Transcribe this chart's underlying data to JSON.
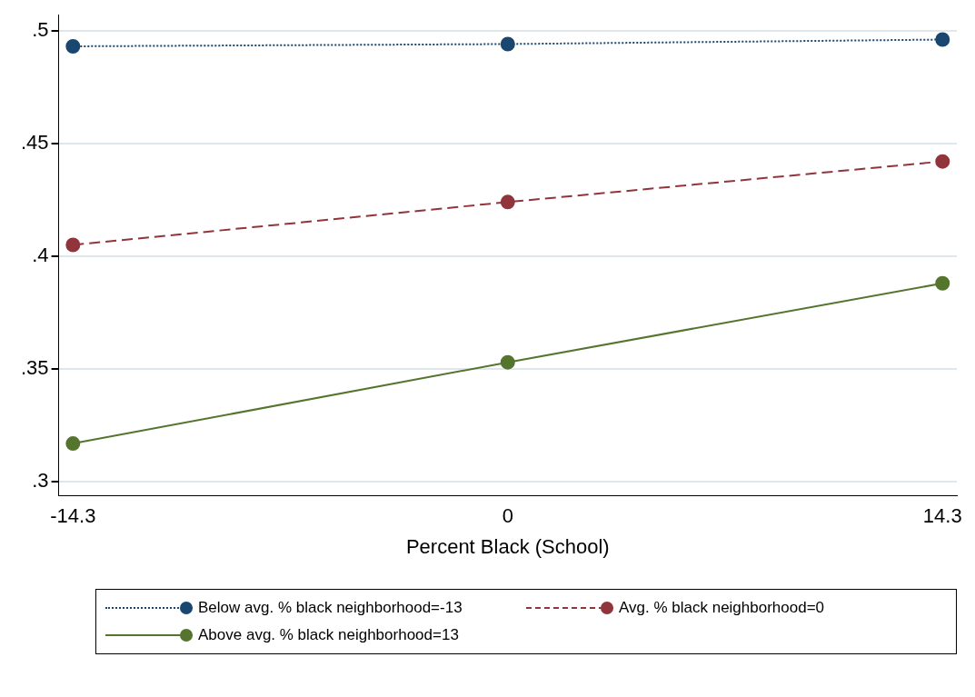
{
  "chart_data": {
    "type": "line",
    "xlabel": "Percent Black (School)",
    "x": [
      -14.3,
      0,
      14.3
    ],
    "series": [
      {
        "name": "Below avg. % black neighborhood=-13",
        "color": "#1a476f",
        "line_style": "dotted",
        "values": [
          0.493,
          0.494,
          0.496
        ]
      },
      {
        "name": "Avg. % black neighborhood=0",
        "color": "#90353b",
        "line_style": "dashed",
        "values": [
          0.405,
          0.424,
          0.442
        ]
      },
      {
        "name": "Above avg. % black neighborhood=13",
        "color": "#55752f",
        "line_style": "solid",
        "values": [
          0.317,
          0.353,
          0.388
        ]
      }
    ],
    "xlim": [
      -14.77,
      14.77
    ],
    "xticks": [
      -14.3,
      0,
      14.3
    ],
    "ylim": [
      0.294,
      0.507
    ],
    "yticks": [
      {
        "value": 0.3,
        "label": ".3"
      },
      {
        "value": 0.35,
        "label": ".35"
      },
      {
        "value": 0.4,
        "label": ".4"
      },
      {
        "value": 0.45,
        "label": ".45"
      },
      {
        "value": 0.5,
        "label": ".5"
      }
    ],
    "grid": "y",
    "legend": "bottom",
    "marker": "circle"
  }
}
